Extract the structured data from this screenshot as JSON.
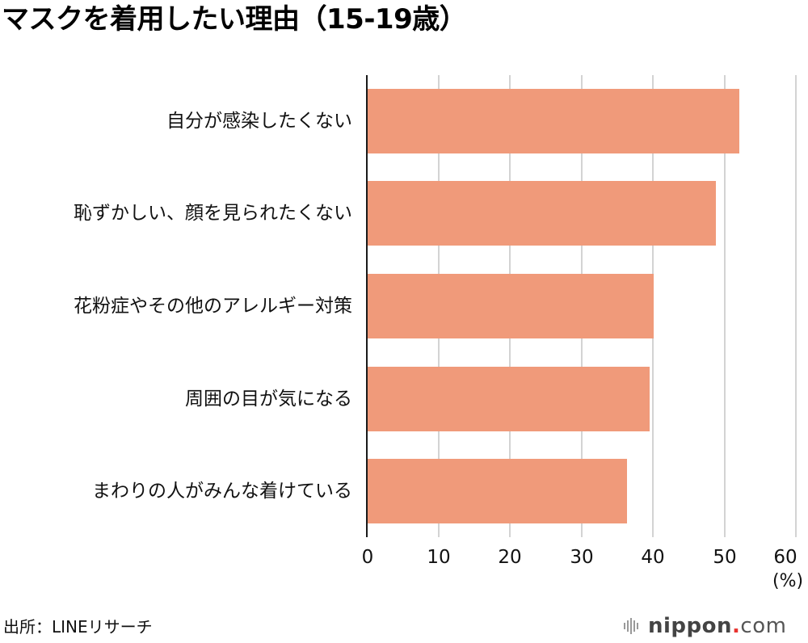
{
  "title": "マスクを着用したい理由（15-19歳）",
  "chart_data": {
    "type": "bar",
    "orientation": "horizontal",
    "title": "マスクを着用したい理由（15-19歳）",
    "categories": [
      "自分が感染したくない",
      "恥ずかしい、顔を見られたくない",
      "花粉症やその他のアレルギー対策",
      "周囲の目が気になる",
      "まわりの人がみんな着けている"
    ],
    "values": [
      52.1,
      48.8,
      40.1,
      39.5,
      36.3
    ],
    "xlabel": "(%)",
    "ylabel": "",
    "xlim": [
      0,
      60
    ],
    "xticks": [
      0,
      10,
      20,
      30,
      40,
      50,
      60
    ],
    "grid": true,
    "legend": null,
    "bar_color": "#f09a7a"
  },
  "axis": {
    "ticks": [
      "0",
      "10",
      "20",
      "30",
      "40",
      "50",
      "60"
    ],
    "unit": "(%)"
  },
  "source": "出所：LINEリサーチ",
  "logo": {
    "brand": "nippon",
    "dot": ".",
    "tld": "com"
  },
  "colors": {
    "bar": "#f09a7a",
    "grid": "#d3d3d3",
    "axis": "#1a1a1a",
    "logo_dot": "#e8332f"
  }
}
